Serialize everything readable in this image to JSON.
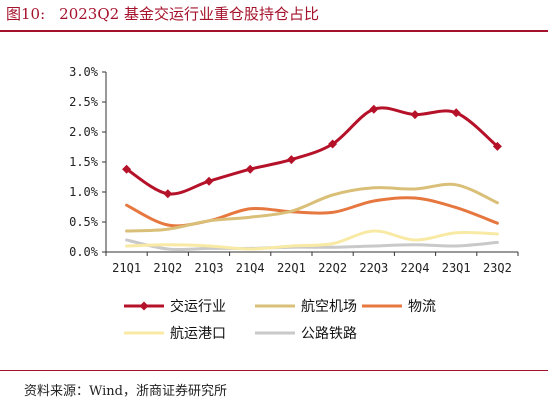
{
  "figure": {
    "label": "图10:",
    "title": "2023Q2 基金交运行业重仓股持仓占比",
    "source": "资料来源：Wind，浙商证券研究所",
    "accent_color": "#a5122b"
  },
  "chart_data": {
    "type": "line",
    "title": "",
    "xlabel": "",
    "ylabel": "",
    "categories": [
      "21Q1",
      "21Q2",
      "21Q3",
      "21Q4",
      "22Q1",
      "22Q2",
      "22Q3",
      "22Q4",
      "23Q1",
      "23Q2"
    ],
    "y_ticks": [
      "0.0%",
      "0.5%",
      "1.0%",
      "1.5%",
      "2.0%",
      "2.5%",
      "3.0%"
    ],
    "ylim": [
      0,
      3.0
    ],
    "grid": false,
    "legend_position": "bottom",
    "series": [
      {
        "name": "交运行业",
        "color": "#b5122a",
        "marker": "diamond",
        "values": [
          1.38,
          0.97,
          1.18,
          1.38,
          1.54,
          1.8,
          2.38,
          2.29,
          2.32,
          1.76
        ]
      },
      {
        "name": "航空机场",
        "color": "#d9bf78",
        "marker": "none",
        "values": [
          0.35,
          0.38,
          0.52,
          0.58,
          0.68,
          0.95,
          1.07,
          1.05,
          1.12,
          0.82
        ]
      },
      {
        "name": "物流",
        "color": "#e5773f",
        "marker": "none",
        "values": [
          0.78,
          0.45,
          0.52,
          0.72,
          0.67,
          0.66,
          0.85,
          0.9,
          0.74,
          0.48
        ]
      },
      {
        "name": "航运港口",
        "color": "#f8eaa4",
        "marker": "none",
        "values": [
          0.1,
          0.12,
          0.1,
          0.05,
          0.1,
          0.14,
          0.35,
          0.2,
          0.32,
          0.3
        ]
      },
      {
        "name": "公路铁路",
        "color": "#c9c9c9",
        "marker": "none",
        "values": [
          0.2,
          0.05,
          0.06,
          0.06,
          0.08,
          0.08,
          0.1,
          0.12,
          0.1,
          0.16
        ]
      }
    ]
  }
}
